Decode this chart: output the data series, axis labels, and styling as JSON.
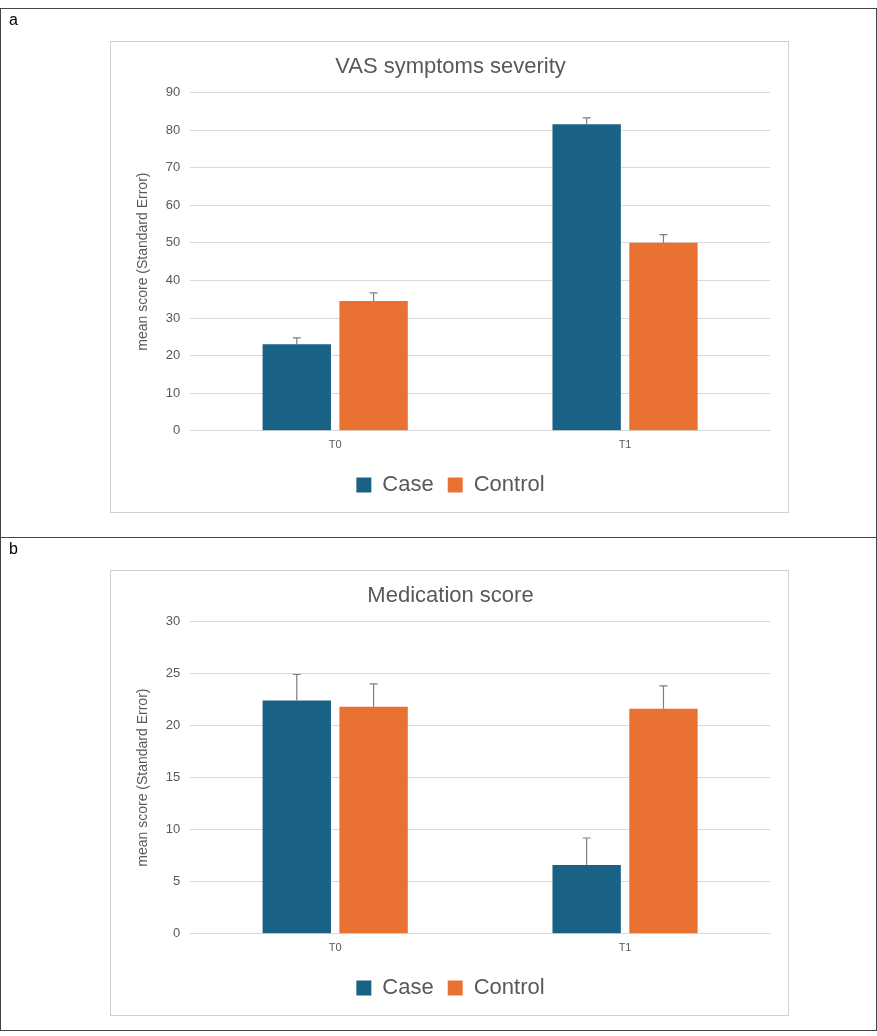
{
  "chart_data": [
    {
      "type": "bar",
      "title": "VAS symptoms severity",
      "ylabel": "mean score (Standard Error)",
      "annotations": [
        "a"
      ],
      "categories": [
        "T0",
        "T1"
      ],
      "series": [
        {
          "name": "Case",
          "color": "#1a6285",
          "values": [
            23,
            81.5
          ],
          "errors": [
            [
              23,
              24.7
            ],
            [
              81.5,
              83.2
            ]
          ]
        },
        {
          "name": "Control",
          "color": "#e97132",
          "values": [
            34.5,
            50
          ],
          "errors": [
            [
              34.5,
              36.7
            ],
            [
              50,
              52.2
            ]
          ]
        }
      ],
      "ylim": [
        0,
        90
      ],
      "yticks": [
        0,
        10,
        20,
        30,
        40,
        50,
        60,
        70,
        80,
        90
      ],
      "grid": "y",
      "legend": "bottom"
    },
    {
      "type": "bar",
      "title": "Medication score",
      "ylabel": "mean score (Standard Error)",
      "annotations": [
        "b"
      ],
      "categories": [
        "T0",
        "T1"
      ],
      "series": [
        {
          "name": "Case",
          "color": "#1a6285",
          "values": [
            22.4,
            6.6
          ],
          "errors": [
            [
              22.4,
              24.9
            ],
            [
              6.6,
              9.2
            ]
          ]
        },
        {
          "name": "Control",
          "color": "#e97132",
          "values": [
            21.8,
            21.6
          ],
          "errors": [
            [
              21.8,
              24
            ],
            [
              21.6,
              23.8
            ]
          ]
        }
      ],
      "ylim": [
        0,
        30
      ],
      "yticks": [
        0,
        5,
        10,
        15,
        20,
        25,
        30
      ],
      "grid": "y",
      "legend": "bottom"
    }
  ]
}
